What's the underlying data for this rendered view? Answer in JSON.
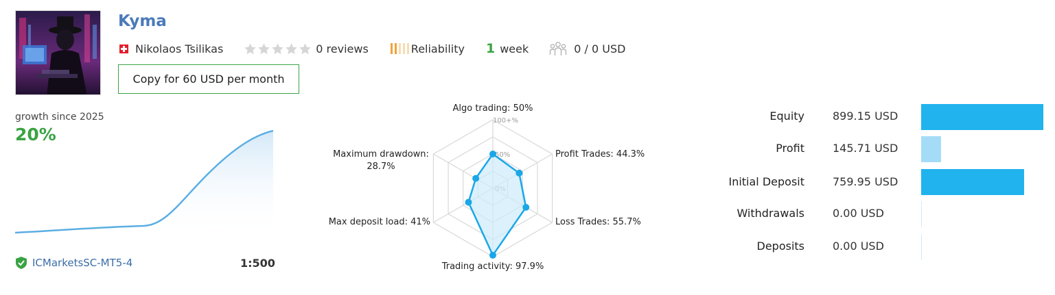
{
  "signal": {
    "title": "Kyma",
    "author": "Nikolaos Tsilikas",
    "reviews": "0 reviews",
    "rating_stars": 0,
    "reliability_label": "Reliability",
    "reliability_level": 2,
    "weeks_number": "1",
    "weeks_unit": "week",
    "subscribers": "0 / 0 USD",
    "copy_button": "Copy for 60 USD per month"
  },
  "growth": {
    "label": "growth since 2025",
    "value": "20%",
    "broker": "ICMarketsSC-MT5-4",
    "leverage": "1:500",
    "line_color": "#5aaee3"
  },
  "radar": {
    "labels": {
      "algo": "Algo trading: 50%",
      "profit": "Profit Trades: 44.3%",
      "loss": "Loss Trades: 55.7%",
      "activity": "Trading activity: 97.9%",
      "load": "Max deposit load: 41%",
      "drawdown_line1": "Maximum drawdown:",
      "drawdown_line2": "28.7%"
    },
    "scale": {
      "top": "100+%",
      "mid": "50%",
      "zero": "0%"
    },
    "values": [
      50,
      44.3,
      55.7,
      97.9,
      41,
      28.7
    ],
    "color": "#1aa7e8"
  },
  "stats": [
    {
      "label": "Equity",
      "value": "899.15 USD",
      "amount": 899.15,
      "color": "#20b3ee"
    },
    {
      "label": "Profit",
      "value": "145.71 USD",
      "amount": 145.71,
      "color": "#a4dcf8"
    },
    {
      "label": "Initial Deposit",
      "value": "759.95 USD",
      "amount": 759.95,
      "color": "#20b3ee"
    },
    {
      "label": "Withdrawals",
      "value": "0.00 USD",
      "amount": 0,
      "color": "#20b3ee"
    },
    {
      "label": "Deposits",
      "value": "0.00 USD",
      "amount": 0,
      "color": "#20b3ee"
    }
  ]
}
